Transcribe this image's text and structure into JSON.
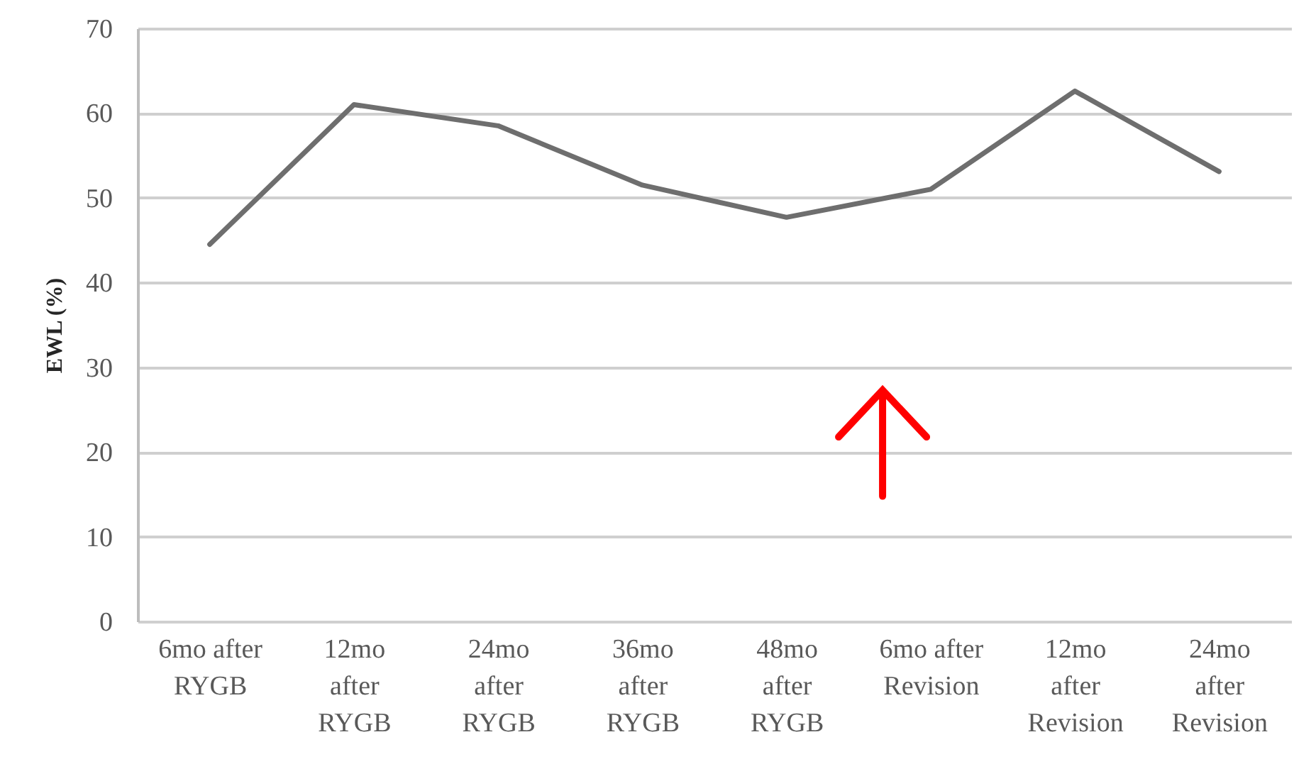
{
  "chart_data": {
    "type": "line",
    "ylabel": "EWL (%)",
    "categories": [
      "6mo after RYGB",
      "12mo after RYGB",
      "24mo after RYGB",
      "36mo after RYGB",
      "48mo after RYGB",
      "6mo after Revision",
      "12mo after Revision",
      "24mo after Revision"
    ],
    "values": [
      44.5,
      61,
      58.5,
      51.5,
      47.7,
      51,
      62.6,
      53.1
    ],
    "color": "#6e6e6e",
    "ylim": [
      0,
      70
    ],
    "yticks": [
      0,
      10,
      20,
      30,
      40,
      50,
      60,
      70
    ],
    "grid": "y",
    "line_style": "solid"
  }
}
